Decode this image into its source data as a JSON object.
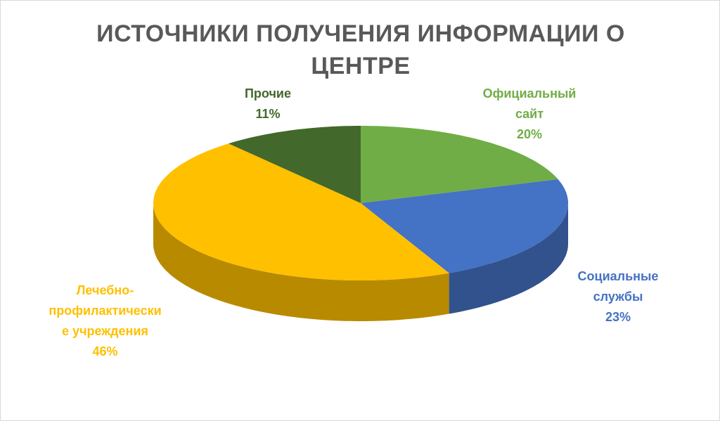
{
  "chart_data": {
    "type": "pie",
    "title": "ИСТОЧНИКИ ПОЛУЧЕНИЯ ИНФОРМАЦИИ О ЦЕНТРЕ",
    "categories": [
      "Официальный сайт",
      "Социальные службы",
      "Лечебно-профилактические учреждения",
      "Прочие"
    ],
    "values": [
      20,
      23,
      46,
      11
    ],
    "value_labels": [
      "20%",
      "23%",
      "46%",
      "11%"
    ],
    "colors": [
      "#70ad47",
      "#4472c4",
      "#ffc000",
      "#43682b"
    ]
  }
}
